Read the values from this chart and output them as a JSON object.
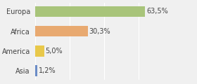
{
  "categories": [
    "Asia",
    "America",
    "Africa",
    "Europa"
  ],
  "values": [
    1.2,
    5.0,
    30.3,
    63.5
  ],
  "colors": [
    "#6b8cc7",
    "#e8c84a",
    "#e8a970",
    "#a8c47a"
  ],
  "labels": [
    "1,2%",
    "5,0%",
    "30,3%",
    "63,5%"
  ],
  "xlim": [
    0,
    80
  ],
  "background_color": "#f0f0f0",
  "label_fontsize": 7.0,
  "tick_fontsize": 7.0,
  "bar_height": 0.55
}
